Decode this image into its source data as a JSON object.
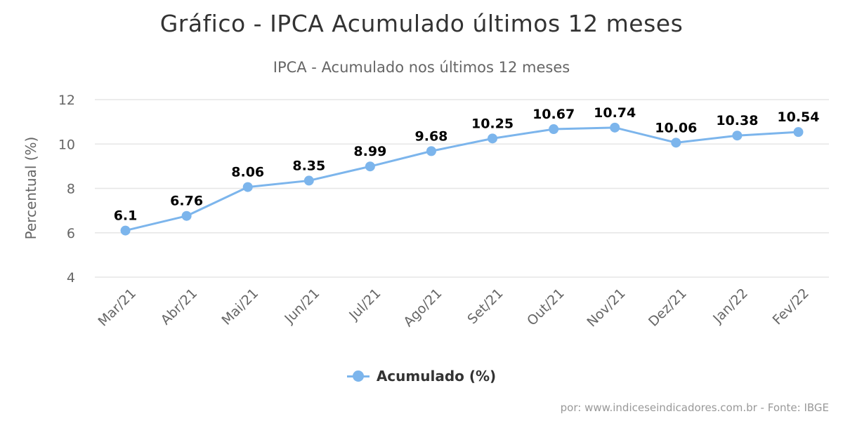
{
  "page": {
    "title": "Gráfico - IPCA Acumulado últimos 12 meses",
    "credits": "por: www.indiceseindicadores.com.br - Fonte: IBGE"
  },
  "chart_data": {
    "type": "line",
    "title": "IPCA - Acumulado nos últimos 12 meses",
    "xlabel": "",
    "ylabel": "Percentual (%)",
    "categories": [
      "Mar/21",
      "Abr/21",
      "Mai/21",
      "Jun/21",
      "Jul/21",
      "Ago/21",
      "Set/21",
      "Out/21",
      "Nov/21",
      "Dez/21",
      "Jan/22",
      "Fev/22"
    ],
    "series": [
      {
        "name": "Acumulado (%)",
        "values": [
          6.1,
          6.76,
          8.06,
          8.35,
          8.99,
          9.68,
          10.25,
          10.67,
          10.74,
          10.06,
          10.38,
          10.54
        ],
        "color": "#7cb5ec",
        "data_labels": [
          "6.1",
          "6.76",
          "8.06",
          "8.35",
          "8.99",
          "9.68",
          "10.25",
          "10.67",
          "10.74",
          "10.06",
          "10.38",
          "10.54"
        ]
      }
    ],
    "ylim": [
      4,
      12
    ],
    "yticks": [
      4,
      6,
      8,
      10,
      12
    ],
    "grid": true,
    "legend": "bottom-center"
  }
}
